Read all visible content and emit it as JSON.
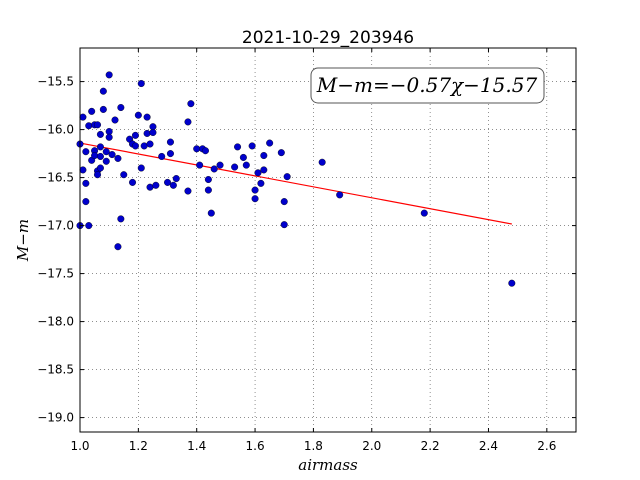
{
  "chart_data": {
    "type": "scatter",
    "title": "2021-10-29_203946",
    "xlabel": "airmass",
    "ylabel": "M−m",
    "annotation": "M−m=−0.57χ−15.57",
    "xlim": [
      1.0,
      2.7
    ],
    "ylim": [
      -19.15,
      -15.15
    ],
    "xticks": [
      1.0,
      1.2,
      1.4,
      1.6,
      1.8,
      2.0,
      2.2,
      2.4,
      2.6
    ],
    "xtick_labels": [
      "1.0",
      "1.2",
      "1.4",
      "1.6",
      "1.8",
      "2.0",
      "2.2",
      "2.4",
      "2.6"
    ],
    "yticks": [
      -15.5,
      -16.0,
      -16.5,
      -17.0,
      -17.5,
      -18.0,
      -18.5,
      -19.0
    ],
    "ytick_labels": [
      "−15.5",
      "−16.0",
      "−16.5",
      "−17.0",
      "−17.5",
      "−18.0",
      "−18.5",
      "−19.0"
    ],
    "grid": true,
    "legend_placement": "top-right",
    "fit": {
      "slope": -0.57,
      "intercept": -15.57,
      "x_range": [
        1.0,
        2.48
      ],
      "color": "#ff0000"
    },
    "points_color": "#0000cc",
    "x": [
      1.0,
      1.0,
      1.01,
      1.01,
      1.02,
      1.02,
      1.02,
      1.03,
      1.03,
      1.04,
      1.04,
      1.05,
      1.05,
      1.05,
      1.06,
      1.06,
      1.06,
      1.07,
      1.07,
      1.07,
      1.07,
      1.08,
      1.08,
      1.09,
      1.09,
      1.1,
      1.1,
      1.1,
      1.11,
      1.12,
      1.13,
      1.13,
      1.14,
      1.14,
      1.15,
      1.17,
      1.18,
      1.18,
      1.19,
      1.19,
      1.2,
      1.21,
      1.21,
      1.22,
      1.23,
      1.23,
      1.24,
      1.24,
      1.25,
      1.25,
      1.26,
      1.28,
      1.3,
      1.31,
      1.31,
      1.32,
      1.33,
      1.37,
      1.37,
      1.38,
      1.4,
      1.41,
      1.42,
      1.43,
      1.44,
      1.44,
      1.45,
      1.46,
      1.48,
      1.53,
      1.54,
      1.56,
      1.57,
      1.59,
      1.6,
      1.6,
      1.61,
      1.62,
      1.63,
      1.63,
      1.65,
      1.69,
      1.7,
      1.7,
      1.71,
      1.83,
      1.89,
      2.18,
      2.48
    ],
    "y": [
      -16.15,
      -17.0,
      -15.87,
      -16.42,
      -16.23,
      -16.56,
      -16.75,
      -15.96,
      -17.0,
      -15.81,
      -16.32,
      -15.95,
      -16.22,
      -16.27,
      -15.95,
      -16.43,
      -16.47,
      -16.05,
      -16.18,
      -16.28,
      -16.4,
      -15.79,
      -15.6,
      -16.23,
      -16.33,
      -15.43,
      -16.02,
      -16.08,
      -16.26,
      -15.9,
      -16.3,
      -17.22,
      -15.77,
      -16.93,
      -16.47,
      -16.1,
      -16.15,
      -16.55,
      -16.06,
      -16.17,
      -15.85,
      -15.52,
      -16.4,
      -16.17,
      -15.87,
      -16.04,
      -16.15,
      -16.6,
      -15.97,
      -16.03,
      -16.58,
      -16.28,
      -16.55,
      -16.13,
      -16.25,
      -16.58,
      -16.51,
      -15.92,
      -16.64,
      -15.73,
      -16.2,
      -16.37,
      -16.2,
      -16.22,
      -16.52,
      -16.63,
      -16.87,
      -16.41,
      -16.37,
      -16.39,
      -16.18,
      -16.29,
      -16.37,
      -16.17,
      -16.63,
      -16.72,
      -16.45,
      -16.56,
      -16.27,
      -16.42,
      -16.14,
      -16.24,
      -16.75,
      -16.99,
      -16.49,
      -16.34,
      -16.68,
      -16.87,
      -17.6
    ]
  }
}
